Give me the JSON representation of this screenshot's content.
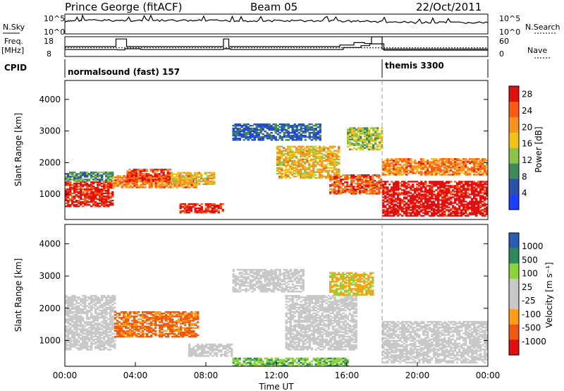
{
  "header": {
    "title": "Prince George (fitACF)",
    "beam": "Beam 05",
    "date": "22/Oct/2011"
  },
  "colors": {
    "power": [
      "#1f3fff",
      "#2a52a8",
      "#3f8a5a",
      "#8cc44a",
      "#f2c21b",
      "#f7931e",
      "#ff5a12",
      "#e01010"
    ],
    "velocity": [
      "#e01010",
      "#f05a10",
      "#ff9e14",
      "#c8c8c8",
      "#c8c8c8",
      "#8cd43a",
      "#2e8a5a",
      "#2a5cb0"
    ],
    "ground_scatter": "#c8c8c8"
  },
  "chart_data": [
    {
      "type": "line",
      "panel": "noise",
      "left_label": "N.Sky",
      "right_label": "N.Search",
      "left_ticks": [
        "10^5",
        "10^0"
      ],
      "right_ticks": [
        "10^5",
        "10^0"
      ],
      "x": [
        0,
        0.5,
        1,
        2,
        3,
        4,
        5,
        6,
        7,
        8,
        9,
        10,
        11,
        12,
        13,
        14,
        15,
        16,
        17,
        18,
        19,
        20,
        21,
        22,
        23,
        24
      ],
      "series": [
        {
          "values": [
            1000,
            4000,
            4500,
            4200,
            3800,
            3600,
            3900,
            3700,
            3500,
            3400,
            3300,
            3200,
            3000,
            3100,
            3200,
            3000,
            2800,
            2600,
            2400,
            1600,
            1200,
            1000,
            900,
            850,
            900,
            1000
          ]
        }
      ]
    },
    {
      "type": "line",
      "panel": "frequency",
      "left_label": "Freq.",
      "left_unit": "[MHz]",
      "left_ticks": [
        "18",
        "8"
      ],
      "ylim_left": [
        8,
        18
      ],
      "right_label": "Nave",
      "right_ticks": [
        "60",
        "0"
      ],
      "ylim_right": [
        0,
        60
      ],
      "freq": {
        "x": [
          0,
          1.5,
          3,
          3.4,
          4.2,
          4.3,
          8.9,
          9.0,
          9.3,
          9.4,
          15.6,
          15.8,
          16.5,
          16.8,
          17.1,
          17.3,
          17.9,
          18.1,
          24
        ],
        "y": [
          11.4,
          11.4,
          11.2,
          11.8,
          11.8,
          11.4,
          11.4,
          11.8,
          11.8,
          11.4,
          11.4,
          12.5,
          12.5,
          13.5,
          13.5,
          14.5,
          14.5,
          11.0,
          11.0
        ]
      },
      "nave": {
        "x": [
          0,
          2.8,
          2.9,
          3.4,
          3.5,
          8.9,
          9.0,
          9.2,
          9.3,
          15.5,
          15.6,
          16.3,
          16.4,
          16.9,
          17.0,
          17.3,
          17.4,
          17.9,
          18.0,
          24
        ],
        "y": [
          30,
          30,
          55,
          55,
          30,
          30,
          55,
          55,
          30,
          30,
          35,
          35,
          43,
          43,
          40,
          40,
          62,
          62,
          22,
          22
        ]
      },
      "nave_reference": 26
    },
    {
      "type": "categorical-timeline",
      "panel": "cpid",
      "label": "CPID",
      "segments": [
        {
          "text": "normalsound (fast) 157",
          "start": 0,
          "end": 18
        },
        {
          "text": "themis 3300",
          "start": 18,
          "end": 24
        }
      ]
    },
    {
      "type": "heatmap",
      "panel": "power",
      "ylabel": "Slant Range [km]",
      "yticks": [
        1000,
        2000,
        3000,
        4000
      ],
      "ylim": [
        200,
        4600
      ],
      "xlim": [
        0,
        24
      ],
      "colorbar_label": "Power [dB]",
      "colorbar_ticks": [
        "4",
        "8",
        "12",
        "16",
        "20",
        "24",
        "28"
      ],
      "colorbar_range": [
        0,
        30
      ],
      "regions": [
        {
          "t0": 0.0,
          "t1": 2.7,
          "r0": 600,
          "r1": 1400,
          "value": 28
        },
        {
          "t0": 0.0,
          "t1": 2.7,
          "r0": 1400,
          "r1": 1700,
          "value": 10
        },
        {
          "t0": 2.7,
          "t1": 7.5,
          "r0": 1200,
          "r1": 1600,
          "value": 22
        },
        {
          "t0": 3.5,
          "t1": 6.0,
          "r0": 1400,
          "r1": 1800,
          "value": 26
        },
        {
          "t0": 6.0,
          "t1": 8.5,
          "r0": 1300,
          "r1": 1700,
          "value": 18
        },
        {
          "t0": 6.5,
          "t1": 9.0,
          "r0": 400,
          "r1": 700,
          "value": 28
        },
        {
          "t0": 9.5,
          "t1": 14.5,
          "r0": 2700,
          "r1": 3200,
          "value": 6
        },
        {
          "t0": 12.0,
          "t1": 15.5,
          "r0": 1500,
          "r1": 2500,
          "value": 18
        },
        {
          "t0": 15.0,
          "t1": 18.0,
          "r0": 1000,
          "r1": 1600,
          "value": 24
        },
        {
          "t0": 16.0,
          "t1": 18.0,
          "r0": 2400,
          "r1": 3100,
          "value": 14
        },
        {
          "t0": 18.0,
          "t1": 24.0,
          "r0": 300,
          "r1": 1400,
          "value": 30
        },
        {
          "t0": 18.0,
          "t1": 24.0,
          "r0": 1600,
          "r1": 2100,
          "value": 22
        }
      ]
    },
    {
      "type": "heatmap",
      "panel": "velocity",
      "ylabel": "Slant Range [km]",
      "yticks": [
        1000,
        2000,
        3000,
        4000
      ],
      "ylim": [
        200,
        4600
      ],
      "xlim": [
        0,
        24
      ],
      "xticks": [
        "00:00",
        "04:00",
        "08:00",
        "12:00",
        "16:00",
        "20:00",
        "00:00"
      ],
      "xlabel": "Time UT",
      "colorbar_label": "Velocity [m s⁻¹]",
      "colorbar_ticks": [
        "1000",
        "500",
        "100",
        "25",
        "-25",
        "-100",
        "-500",
        "-1000"
      ],
      "regions": [
        {
          "t0": 0.0,
          "t1": 2.8,
          "r0": 700,
          "r1": 2400,
          "class": "gs"
        },
        {
          "t0": 2.8,
          "t1": 7.5,
          "r0": 1100,
          "r1": 1900,
          "class": "neg_fast"
        },
        {
          "t0": 7.0,
          "t1": 9.5,
          "r0": 500,
          "r1": 900,
          "class": "gs"
        },
        {
          "t0": 9.5,
          "t1": 13.5,
          "r0": 2500,
          "r1": 3200,
          "class": "gs"
        },
        {
          "t0": 12.5,
          "t1": 16.5,
          "r0": 700,
          "r1": 2400,
          "class": "gs"
        },
        {
          "t0": 15.0,
          "t1": 17.5,
          "r0": 2400,
          "r1": 3100,
          "class": "neg_mid"
        },
        {
          "t0": 9.5,
          "t1": 16.0,
          "r0": 200,
          "r1": 450,
          "class": "pos_low"
        },
        {
          "t0": 18.0,
          "t1": 24.0,
          "r0": 300,
          "r1": 1600,
          "class": "gs"
        }
      ]
    }
  ]
}
